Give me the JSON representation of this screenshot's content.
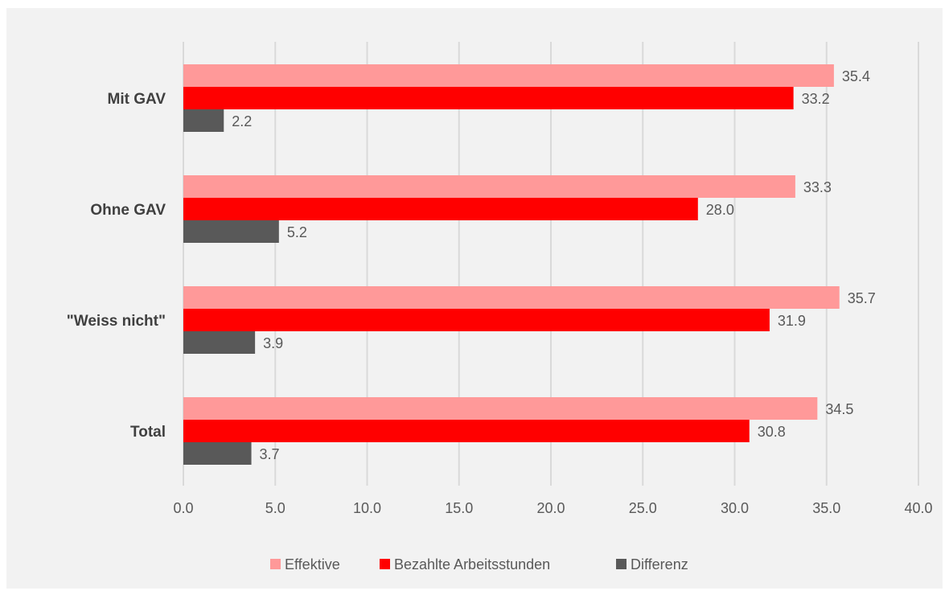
{
  "chart_data": {
    "type": "bar",
    "orientation": "horizontal",
    "categories": [
      "Mit GAV",
      "Ohne GAV",
      "\"Weiss nicht\"",
      "Total"
    ],
    "series": [
      {
        "name": "Effektive",
        "color": "#ff9999",
        "values": [
          35.4,
          33.3,
          35.7,
          34.5
        ]
      },
      {
        "name": "Bezahlte Arbeitsstunden",
        "color": "#ff0000",
        "values": [
          33.2,
          28.0,
          31.9,
          30.8
        ]
      },
      {
        "name": "Differenz",
        "color": "#595959",
        "values": [
          2.2,
          5.2,
          3.9,
          3.7
        ]
      }
    ],
    "xlim": [
      0,
      40
    ],
    "xticks": [
      "0.0",
      "5.0",
      "10.0",
      "15.0",
      "20.0",
      "25.0",
      "30.0",
      "35.0",
      "40.0"
    ],
    "grid": "vertical",
    "legend": "bottom"
  }
}
